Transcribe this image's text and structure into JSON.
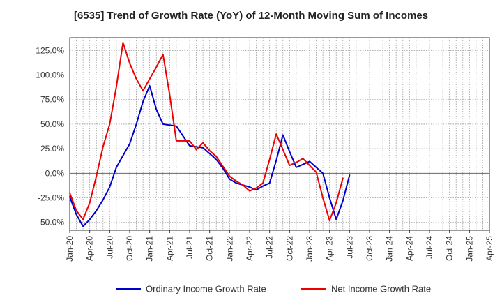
{
  "chart_data": {
    "type": "line",
    "title": "[6535]  Trend of Growth Rate (YoY) of 12-Month Moving Sum of Incomes",
    "xlabel": "",
    "ylabel": "",
    "x_tick_labels": [
      "Jan-20",
      "Apr-20",
      "Jul-20",
      "Oct-20",
      "Jan-21",
      "Apr-21",
      "Jul-21",
      "Oct-21",
      "Jan-22",
      "Apr-22",
      "Jul-22",
      "Oct-22",
      "Jan-23",
      "Apr-23",
      "Jul-23",
      "Oct-23",
      "Jan-24",
      "Apr-24",
      "Jul-24",
      "Oct-24",
      "Jan-25",
      "Apr-25"
    ],
    "y_tick_labels": [
      "125.0%",
      "100.0%",
      "75.0%",
      "50.0%",
      "25.0%",
      "0.0%",
      "-25.0%",
      "-50.0%"
    ],
    "y_ticks": [
      125,
      100,
      75,
      50,
      25,
      0,
      -25,
      -50
    ],
    "ylim": [
      -58,
      138
    ],
    "x_range": [
      "Jan-20",
      "Apr-25"
    ],
    "grid": true,
    "legend_position": "bottom",
    "series": [
      {
        "name": "Ordinary Income Growth Rate",
        "color": "#0000cc",
        "points": [
          [
            "Jan-20",
            -24
          ],
          [
            "Feb-20",
            -42
          ],
          [
            "Mar-20",
            -54
          ],
          [
            "Apr-20",
            -47
          ],
          [
            "May-20",
            -38
          ],
          [
            "Jun-20",
            -27
          ],
          [
            "Jul-20",
            -14
          ],
          [
            "Aug-20",
            6
          ],
          [
            "Sep-20",
            18
          ],
          [
            "Oct-20",
            30
          ],
          [
            "Nov-20",
            50
          ],
          [
            "Dec-20",
            73
          ],
          [
            "Jan-21",
            89
          ],
          [
            "Feb-21",
            65
          ],
          [
            "Mar-21",
            50
          ],
          [
            "Apr-21",
            49
          ],
          [
            "May-21",
            48
          ],
          [
            "Jun-21",
            38
          ],
          [
            "Jul-21",
            28
          ],
          [
            "Aug-21",
            27
          ],
          [
            "Sep-21",
            26
          ],
          [
            "Oct-21",
            20
          ],
          [
            "Nov-21",
            14
          ],
          [
            "Dec-21",
            5
          ],
          [
            "Jan-22",
            -6
          ],
          [
            "Feb-22",
            -10
          ],
          [
            "Mar-22",
            -12
          ],
          [
            "Apr-22",
            -14
          ],
          [
            "May-22",
            -17
          ],
          [
            "Jun-22",
            -13
          ],
          [
            "Jul-22",
            -10
          ],
          [
            "Aug-22",
            13
          ],
          [
            "Sep-22",
            39
          ],
          [
            "Oct-22",
            22
          ],
          [
            "Nov-22",
            6
          ],
          [
            "Dec-22",
            9
          ],
          [
            "Jan-23",
            12
          ],
          [
            "Feb-23",
            6
          ],
          [
            "Mar-23",
            0
          ],
          [
            "Apr-23",
            -25
          ],
          [
            "May-23",
            -47
          ],
          [
            "Jun-23",
            -28
          ],
          [
            "Jul-23",
            -2
          ]
        ]
      },
      {
        "name": "Net Income Growth Rate",
        "color": "#ee0000",
        "points": [
          [
            "Jan-20",
            -20
          ],
          [
            "Feb-20",
            -38
          ],
          [
            "Mar-20",
            -47
          ],
          [
            "Apr-20",
            -30
          ],
          [
            "May-20",
            -3
          ],
          [
            "Jun-20",
            27
          ],
          [
            "Jul-20",
            50
          ],
          [
            "Aug-20",
            88
          ],
          [
            "Sep-20",
            133
          ],
          [
            "Oct-20",
            112
          ],
          [
            "Nov-20",
            96
          ],
          [
            "Dec-20",
            84
          ],
          [
            "Jan-21",
            96
          ],
          [
            "Feb-21",
            108
          ],
          [
            "Mar-21",
            121
          ],
          [
            "Apr-21",
            80
          ],
          [
            "May-21",
            33
          ],
          [
            "Jun-21",
            33
          ],
          [
            "Jul-21",
            33
          ],
          [
            "Aug-21",
            24
          ],
          [
            "Sep-21",
            31
          ],
          [
            "Oct-21",
            23
          ],
          [
            "Nov-21",
            17
          ],
          [
            "Dec-21",
            7
          ],
          [
            "Jan-22",
            -3
          ],
          [
            "Feb-22",
            -8
          ],
          [
            "Mar-22",
            -12
          ],
          [
            "Apr-22",
            -18
          ],
          [
            "May-22",
            -15
          ],
          [
            "Jun-22",
            -10
          ],
          [
            "Jul-22",
            14
          ],
          [
            "Aug-22",
            40
          ],
          [
            "Sep-22",
            24
          ],
          [
            "Oct-22",
            8
          ],
          [
            "Nov-22",
            11
          ],
          [
            "Dec-22",
            15
          ],
          [
            "Jan-23",
            8
          ],
          [
            "Feb-23",
            1
          ],
          [
            "Mar-23",
            -25
          ],
          [
            "Apr-23",
            -48
          ],
          [
            "May-23",
            -30
          ],
          [
            "Jun-23",
            -5
          ]
        ]
      }
    ]
  }
}
